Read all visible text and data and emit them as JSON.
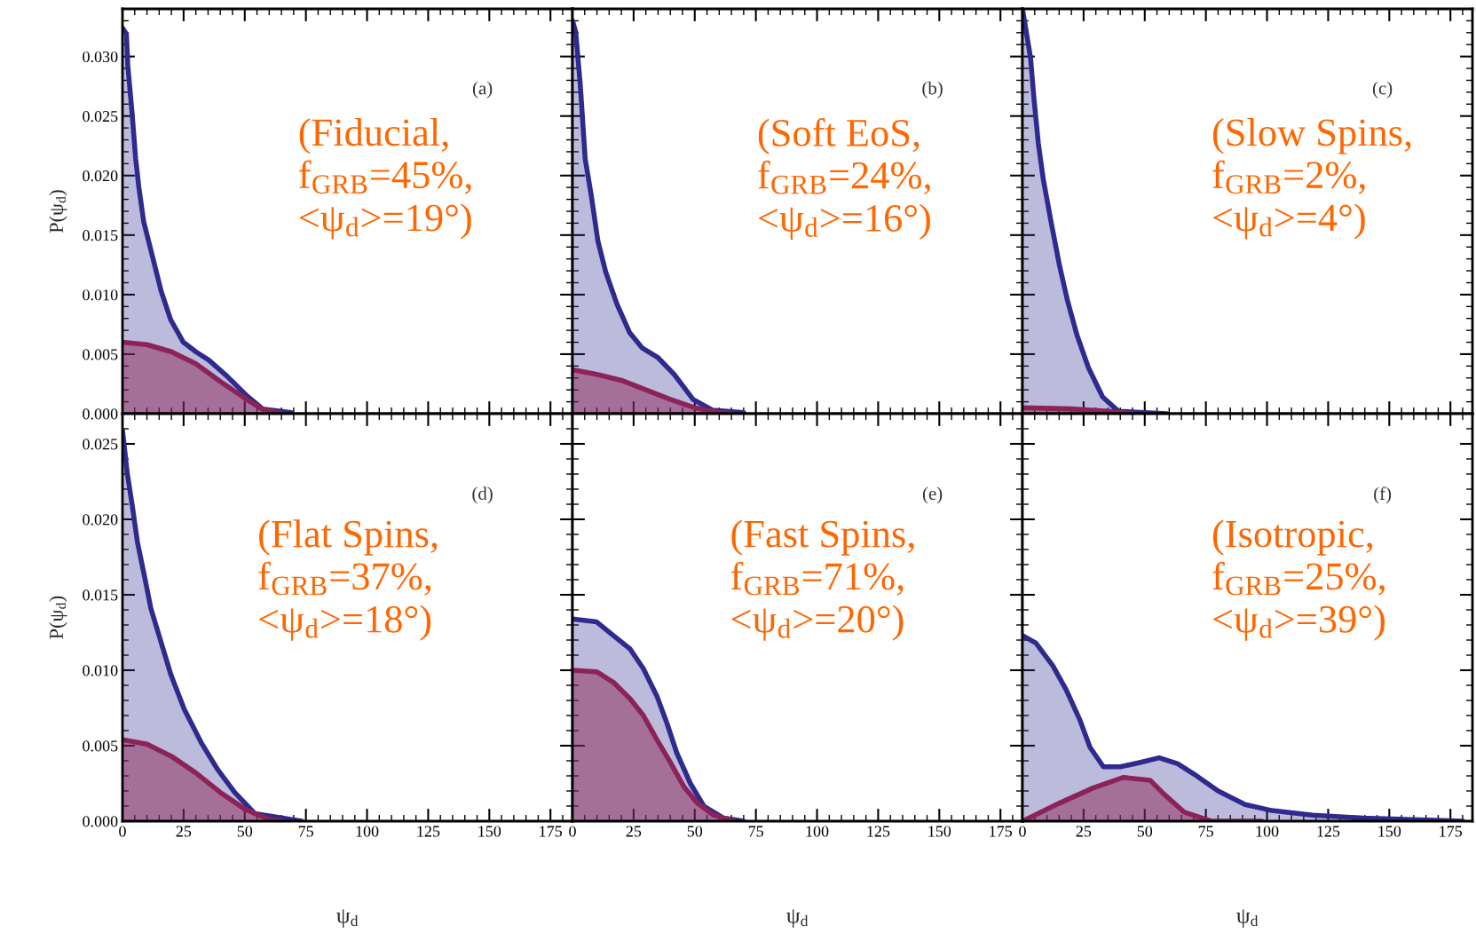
{
  "chart_data": [
    {
      "type": "area",
      "ylabel": "P(ψ$_{d}$)",
      "xlim": [
        0,
        184
      ],
      "ylim": [
        0,
        0.034
      ],
      "xticks": [
        {
          "value": 0,
          "label": null
        },
        {
          "value": 25,
          "label": null
        },
        {
          "value": 50,
          "label": null
        },
        {
          "value": 75,
          "label": null
        },
        {
          "value": 100,
          "label": null
        },
        {
          "value": 125,
          "label": null
        },
        {
          "value": 150,
          "label": null
        },
        {
          "value": 175,
          "label": null
        }
      ],
      "yticks": [
        {
          "value": 0,
          "label": "0.000"
        },
        {
          "value": 0.005,
          "label": "0.005"
        },
        {
          "value": 0.01,
          "label": "0.010"
        },
        {
          "value": 0.015,
          "label": "0.015"
        },
        {
          "value": 0.02,
          "label": "0.020"
        },
        {
          "value": 0.025,
          "label": "0.025"
        },
        {
          "value": 0.03,
          "label": "0.030"
        }
      ],
      "tick_labels": "y",
      "grid": false,
      "legend": false,
      "annotations": [
        "(a)",
        "(Fiducial,\nf$_{GRB}$=45%,\n<ψ$_{d}$>=19°)"
      ],
      "series": [
        {
          "color": "#2e2a8e",
          "x": [
            0,
            1.6,
            2.2,
            3.9,
            5.4,
            6.7,
            8.7,
            11.9,
            15.8,
            19.7,
            24.9,
            30,
            35.3,
            43,
            50.9,
            57.3,
            69
          ],
          "values": [
            0.0324,
            0.0319,
            0.0292,
            0.0253,
            0.0214,
            0.019,
            0.0161,
            0.0135,
            0.0103,
            0.0079,
            0.006,
            0.0052,
            0.0045,
            0.0031,
            0.0015,
            0.0004,
            0.0001
          ]
        },
        {
          "color": "#8c2358",
          "x": [
            0,
            10,
            20,
            30,
            40,
            50,
            57,
            65
          ],
          "values": [
            0.006,
            0.0058,
            0.0052,
            0.0042,
            0.0027,
            0.0013,
            0.0004,
            0
          ]
        }
      ]
    },
    {
      "type": "area",
      "xlim": [
        0,
        184
      ],
      "ylim": [
        0,
        0.034
      ],
      "xticks": [
        {
          "value": 0,
          "label": null
        },
        {
          "value": 25,
          "label": null
        },
        {
          "value": 50,
          "label": null
        },
        {
          "value": 75,
          "label": null
        },
        {
          "value": 100,
          "label": null
        },
        {
          "value": 125,
          "label": null
        },
        {
          "value": 150,
          "label": null
        },
        {
          "value": 175,
          "label": null
        }
      ],
      "yticks": [
        {
          "value": 0,
          "label": null
        },
        {
          "value": 0.005,
          "label": null
        },
        {
          "value": 0.01,
          "label": null
        },
        {
          "value": 0.015,
          "label": null
        },
        {
          "value": 0.02,
          "label": null
        },
        {
          "value": 0.025,
          "label": null
        },
        {
          "value": 0.03,
          "label": null
        }
      ],
      "tick_labels": false,
      "grid": false,
      "legend": false,
      "annotations": [
        "(b)",
        "(Soft EoS,\nf$_{GRB}$=24%,\n<ψ$_{d}$>=16°)"
      ],
      "series": [
        {
          "color": "#2e2a8e",
          "x": [
            0,
            1.3,
            3.2,
            5.2,
            7.7,
            10.4,
            13.6,
            18.2,
            23.4,
            28.6,
            35,
            41.6,
            49.3,
            57.2,
            70
          ],
          "values": [
            0.033,
            0.0321,
            0.0276,
            0.0214,
            0.0183,
            0.0145,
            0.0119,
            0.0092,
            0.0068,
            0.0055,
            0.0047,
            0.0033,
            0.0012,
            0.0003,
            0.0001
          ]
        },
        {
          "color": "#8c2358",
          "x": [
            0,
            10,
            20,
            30,
            40,
            50,
            60,
            65
          ],
          "values": [
            0.0037,
            0.0033,
            0.0028,
            0.002,
            0.0012,
            0.0005,
            0.0001,
            0
          ]
        }
      ]
    },
    {
      "type": "area",
      "xlim": [
        0,
        184
      ],
      "ylim": [
        0,
        0.034
      ],
      "xticks": [
        {
          "value": 0,
          "label": null
        },
        {
          "value": 25,
          "label": null
        },
        {
          "value": 50,
          "label": null
        },
        {
          "value": 75,
          "label": null
        },
        {
          "value": 100,
          "label": null
        },
        {
          "value": 125,
          "label": null
        },
        {
          "value": 150,
          "label": null
        },
        {
          "value": 175,
          "label": null
        }
      ],
      "yticks": [
        {
          "value": 0,
          "label": null
        },
        {
          "value": 0.005,
          "label": null
        },
        {
          "value": 0.01,
          "label": null
        },
        {
          "value": 0.015,
          "label": null
        },
        {
          "value": 0.02,
          "label": null
        },
        {
          "value": 0.025,
          "label": null
        },
        {
          "value": 0.03,
          "label": null
        }
      ],
      "tick_labels": false,
      "grid": false,
      "legend": false,
      "annotations": [
        "(c)",
        "(Slow Spins,\nf$_{GRB}$=2%,\n<ψ$_{d}$>=4°)"
      ],
      "series": [
        {
          "color": "#2e2a8e",
          "x": [
            0,
            3.3,
            4.6,
            6.5,
            8.5,
            11.8,
            15.1,
            18.4,
            22.3,
            26.9,
            32.8,
            39.3,
            59
          ],
          "values": [
            0.034,
            0.0299,
            0.0267,
            0.0227,
            0.0197,
            0.016,
            0.0125,
            0.0095,
            0.0066,
            0.0039,
            0.0014,
            0.0002,
            0
          ]
        },
        {
          "color": "#8c2358",
          "x": [
            0,
            20,
            35,
            45
          ],
          "values": [
            0.0005,
            0.0004,
            0.0002,
            0
          ]
        }
      ]
    },
    {
      "type": "area",
      "xlabel": "ψ$_{d}$",
      "ylabel": "P(ψ$_{d}$)",
      "xlim": [
        0,
        184
      ],
      "ylim": [
        0,
        0.027
      ],
      "xticks": [
        0,
        25,
        50,
        75,
        100,
        125,
        150,
        175
      ],
      "yticks": [
        {
          "value": 0,
          "label": "0.000"
        },
        {
          "value": 0.005,
          "label": "0.005"
        },
        {
          "value": 0.01,
          "label": "0.010"
        },
        {
          "value": 0.015,
          "label": "0.015"
        },
        {
          "value": 0.02,
          "label": "0.020"
        },
        {
          "value": 0.025,
          "label": "0.025"
        }
      ],
      "grid": false,
      "legend": false,
      "annotations": [
        "(d)",
        "(Flat Spins,\nf$_{GRB}$=37%,\n<ψ$_{d}$>=18°)"
      ],
      "series": [
        {
          "color": "#2e2a8e",
          "x": [
            0,
            2,
            4.1,
            6.1,
            8.9,
            11.6,
            15.7,
            19.8,
            25.3,
            32.2,
            39,
            45.9,
            54.1,
            73.3
          ],
          "values": [
            0.0259,
            0.023,
            0.0208,
            0.0185,
            0.0163,
            0.0141,
            0.0119,
            0.0097,
            0.0074,
            0.0052,
            0.0034,
            0.0019,
            0.0005,
            0
          ]
        },
        {
          "color": "#8c2358",
          "x": [
            0,
            10,
            20,
            30,
            40,
            50,
            60,
            65
          ],
          "values": [
            0.0054,
            0.0051,
            0.0043,
            0.0032,
            0.0019,
            0.0008,
            0.0001,
            0
          ]
        }
      ]
    },
    {
      "type": "area",
      "xlabel": "ψ$_{d}$",
      "xlim": [
        0,
        184
      ],
      "ylim": [
        0,
        0.027
      ],
      "xticks": [
        0,
        25,
        50,
        75,
        100,
        125,
        150,
        175
      ],
      "yticks": [
        {
          "value": 0,
          "label": null
        },
        {
          "value": 0.005,
          "label": null
        },
        {
          "value": 0.01,
          "label": null
        },
        {
          "value": 0.015,
          "label": null
        },
        {
          "value": 0.02,
          "label": null
        },
        {
          "value": 0.025,
          "label": null
        }
      ],
      "tick_labels": "x",
      "grid": false,
      "legend": false,
      "annotations": [
        "(e)",
        "(Fast Spins,\nf$_{GRB}$=71%,\n<ψ$_{d}$>=20°)"
      ],
      "series": [
        {
          "color": "#2e2a8e",
          "x": [
            0,
            9.9,
            16.7,
            23.6,
            29,
            34.5,
            38.6,
            42.7,
            48.2,
            53.7,
            61.8,
            70
          ],
          "values": [
            0.0134,
            0.0132,
            0.0123,
            0.0114,
            0.0101,
            0.0083,
            0.0065,
            0.0045,
            0.0025,
            0.001,
            0.0002,
            0
          ]
        },
        {
          "color": "#8c2358",
          "x": [
            0,
            9.9,
            16.7,
            23.6,
            29,
            34.5,
            40,
            45.5,
            51,
            57.7,
            66
          ],
          "values": [
            0.01,
            0.0099,
            0.0092,
            0.0081,
            0.007,
            0.0054,
            0.0039,
            0.0023,
            0.0012,
            0.0004,
            0
          ]
        }
      ]
    },
    {
      "type": "area",
      "xlabel": "ψ$_{d}$",
      "xlim": [
        0,
        184
      ],
      "ylim": [
        0,
        0.027
      ],
      "xticks": [
        0,
        25,
        50,
        75,
        100,
        125,
        150,
        175
      ],
      "yticks": [
        {
          "value": 0,
          "label": null
        },
        {
          "value": 0.005,
          "label": null
        },
        {
          "value": 0.01,
          "label": null
        },
        {
          "value": 0.015,
          "label": null
        },
        {
          "value": 0.02,
          "label": null
        },
        {
          "value": 0.025,
          "label": null
        }
      ],
      "tick_labels": "x",
      "grid": false,
      "legend": false,
      "annotations": [
        "(f)",
        "(Isotropic,\nf$_{GRB}$=25%,\n<ψ$_{d}$>=39°)"
      ],
      "series": [
        {
          "color": "#2e2a8e",
          "x": [
            0,
            5.5,
            12.4,
            17.9,
            23.5,
            27.6,
            33.1,
            40,
            48.3,
            55.9,
            63.5,
            70.3,
            80,
            91,
            102,
            118.6,
            139.3,
            159.9,
            180
          ],
          "values": [
            0.0123,
            0.0118,
            0.0103,
            0.0087,
            0.0067,
            0.0049,
            0.0036,
            0.0036,
            0.0039,
            0.0042,
            0.0038,
            0.0031,
            0.002,
            0.0011,
            0.0007,
            0.0004,
            0.0002,
            0.0001,
            0
          ]
        },
        {
          "color": "#8c2358",
          "x": [
            0,
            15.2,
            28.9,
            41.3,
            52.3,
            57.8,
            66.1,
            77.2,
            97.8
          ],
          "values": [
            0,
            0.0012,
            0.0022,
            0.0029,
            0.0027,
            0.0018,
            0.0006,
            0,
            0
          ]
        }
      ]
    }
  ]
}
